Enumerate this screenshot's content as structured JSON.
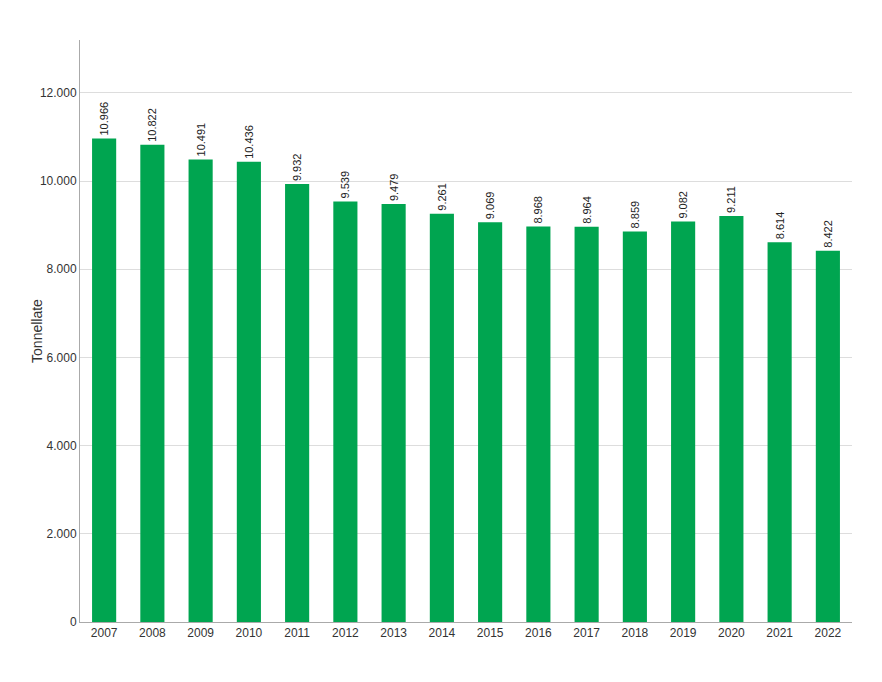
{
  "chart_data": {
    "type": "bar",
    "categories": [
      "2007",
      "2008",
      "2009",
      "2010",
      "2011",
      "2012",
      "2013",
      "2014",
      "2015",
      "2016",
      "2017",
      "2018",
      "2019",
      "2020",
      "2021",
      "2022"
    ],
    "values": [
      10966,
      10822,
      10491,
      10436,
      9932,
      9539,
      9479,
      9261,
      9069,
      8968,
      8964,
      8859,
      9082,
      9211,
      8614,
      8422
    ],
    "value_labels": [
      "10.966",
      "10.822",
      "10.491",
      "10.436",
      "9.932",
      "9.539",
      "9.479",
      "9.261",
      "9.069",
      "8.968",
      "8.964",
      "8.859",
      "9.082",
      "9.211",
      "8.614",
      "8.422"
    ],
    "data_labels": true,
    "color": "#00A550",
    "ylabel": "Tonnellate",
    "ylim": [
      0,
      13200
    ],
    "yticks": [
      0,
      {
        "value": 2000,
        "label": "2.000"
      },
      {
        "value": 4000,
        "label": "4.000"
      },
      {
        "value": 6000,
        "label": "6.000"
      },
      {
        "value": 8000,
        "label": "8.000"
      },
      {
        "value": 10000,
        "label": "10.000"
      },
      {
        "value": 12000,
        "label": "12.000"
      }
    ],
    "grid": true
  }
}
